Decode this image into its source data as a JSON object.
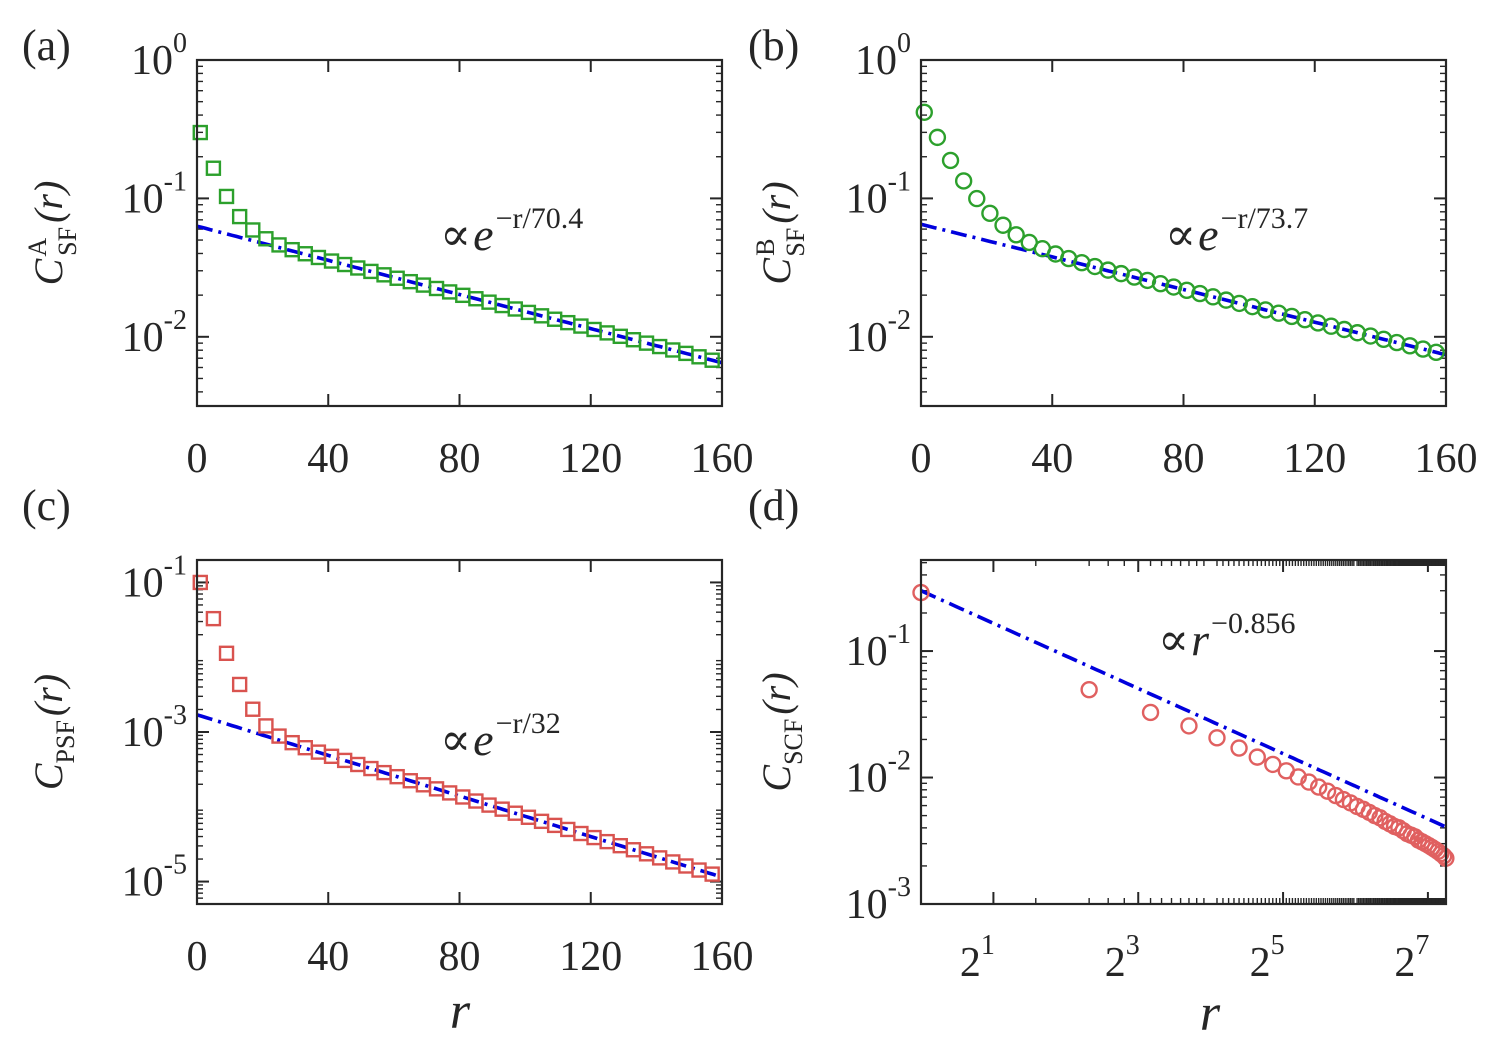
{
  "chart_data": [
    {
      "panel": "(a)",
      "type": "scatter",
      "xscale": "linear",
      "yscale": "log",
      "xlim": [
        0,
        160
      ],
      "ylim_exp": [
        -2.5,
        0
      ],
      "xticks": [
        0,
        40,
        80,
        120,
        160
      ],
      "xtick_labels": [
        "0",
        "40",
        "80",
        "120",
        "160"
      ],
      "yticks_exp": [
        0,
        -1,
        -2
      ],
      "ytick_labels": [
        {
          "base": "10",
          "exp": "0"
        },
        {
          "base": "10",
          "exp": "-1"
        },
        {
          "base": "10",
          "exp": "-2"
        }
      ],
      "ylabel": {
        "main": "C",
        "sup": "A",
        "sub": "SF",
        "arg": "(r)"
      },
      "xlabel": "",
      "marker": "square",
      "marker_color": "#2ca02c",
      "series_decay": {
        "r0": 1,
        "y0": 0.3,
        "yinf": 0.063,
        "rc": 5,
        "len": 70.4,
        "step": 4
      },
      "fit": {
        "form": "exp",
        "r_from": 0,
        "r_to": 160,
        "A": 0.063,
        "len": 70.4,
        "color": "#0000dd"
      },
      "annotation": {
        "lead": "∝",
        "base": "e",
        "sup": "−r/70.4"
      }
    },
    {
      "panel": "(b)",
      "type": "scatter",
      "xscale": "linear",
      "yscale": "log",
      "xlim": [
        0,
        160
      ],
      "ylim_exp": [
        -2.5,
        0
      ],
      "xticks": [
        0,
        40,
        80,
        120,
        160
      ],
      "xtick_labels": [
        "0",
        "40",
        "80",
        "120",
        "160"
      ],
      "yticks_exp": [
        0,
        -1,
        -2
      ],
      "ytick_labels": [
        {
          "base": "10",
          "exp": "0"
        },
        {
          "base": "10",
          "exp": "-1"
        },
        {
          "base": "10",
          "exp": "-2"
        }
      ],
      "ylabel": {
        "main": "C",
        "sup": "B",
        "sub": "SF",
        "arg": "(r)"
      },
      "xlabel": "",
      "marker": "circle",
      "marker_color": "#2ca02c",
      "series_decay": {
        "r0": 1,
        "y0": 0.42,
        "yinf": 0.065,
        "rc": 8,
        "len": 73.7,
        "step": 4
      },
      "fit": {
        "form": "exp",
        "r_from": 0,
        "r_to": 160,
        "A": 0.065,
        "len": 73.7,
        "color": "#0000dd"
      },
      "annotation": {
        "lead": "∝",
        "base": "e",
        "sup": "−r/73.7"
      }
    },
    {
      "panel": "(c)",
      "type": "scatter",
      "xscale": "linear",
      "yscale": "log",
      "xlim": [
        0,
        160
      ],
      "ylim_exp": [
        -5.3,
        -0.7
      ],
      "xticks": [
        0,
        40,
        80,
        120,
        160
      ],
      "xtick_labels": [
        "0",
        "40",
        "80",
        "120",
        "160"
      ],
      "yticks_exp": [
        -1,
        -3,
        -5
      ],
      "ytick_labels": [
        {
          "base": "10",
          "exp": "-1"
        },
        {
          "base": "10",
          "exp": "-3"
        },
        {
          "base": "10",
          "exp": "-5"
        }
      ],
      "ylabel": {
        "main": "C",
        "sup": "",
        "sub": "PSF",
        "arg": "(r)"
      },
      "xlabel": "r",
      "marker": "square",
      "marker_color": "#d9534f",
      "series_decay": {
        "r0": 1,
        "y0": 0.1,
        "yinf": 0.0017,
        "rc": 3.5,
        "len": 32,
        "step": 4
      },
      "fit": {
        "form": "exp",
        "r_from": 0,
        "r_to": 160,
        "A": 0.0017,
        "len": 32,
        "color": "#0000dd"
      },
      "annotation": {
        "lead": "∝",
        "base": "e",
        "sup": "−r/32"
      }
    },
    {
      "panel": "(d)",
      "type": "scatter",
      "xscale": "log2",
      "yscale": "log",
      "xlim_log2": [
        0,
        7.25
      ],
      "ylim_exp": [
        -3,
        -0.28
      ],
      "xticks_log2": [
        1,
        3,
        5,
        7
      ],
      "xtick_labels": [
        {
          "base": "2",
          "exp": "1"
        },
        {
          "base": "2",
          "exp": "3"
        },
        {
          "base": "2",
          "exp": "5"
        },
        {
          "base": "2",
          "exp": "7"
        }
      ],
      "yticks_exp": [
        -1,
        -2,
        -3
      ],
      "ytick_labels": [
        {
          "base": "10",
          "exp": "-1"
        },
        {
          "base": "10",
          "exp": "-2"
        },
        {
          "base": "10",
          "exp": "-3"
        }
      ],
      "ylabel": {
        "main": "C",
        "sup": "",
        "sub": "SCF",
        "arg": "(r)"
      },
      "xlabel": "r",
      "marker": "circle",
      "marker_color": "#e06060",
      "points": [
        [
          1,
          0.29
        ],
        [
          5,
          0.0495
        ],
        [
          9,
          0.0327
        ],
        [
          13,
          0.0256
        ],
        [
          17,
          0.0206
        ],
        [
          21,
          0.0171
        ],
        [
          25,
          0.0145
        ],
        [
          29,
          0.0127
        ],
        [
          33,
          0.0113
        ],
        [
          37,
          0.0101
        ],
        [
          41,
          0.0092
        ],
        [
          45,
          0.0084
        ],
        [
          49,
          0.0078
        ],
        [
          53,
          0.0072
        ],
        [
          57,
          0.0067
        ],
        [
          61,
          0.0063
        ],
        [
          65,
          0.0059
        ],
        [
          69,
          0.0056
        ],
        [
          73,
          0.0053
        ],
        [
          77,
          0.005
        ],
        [
          81,
          0.0048
        ],
        [
          85,
          0.0045
        ],
        [
          89,
          0.0043
        ],
        [
          93,
          0.0041
        ],
        [
          97,
          0.004
        ],
        [
          101,
          0.0038
        ],
        [
          105,
          0.0036
        ],
        [
          109,
          0.0035
        ],
        [
          113,
          0.0034
        ],
        [
          117,
          0.0032
        ],
        [
          121,
          0.0031
        ],
        [
          125,
          0.003
        ],
        [
          129,
          0.0029
        ],
        [
          133,
          0.0028
        ],
        [
          137,
          0.0027
        ],
        [
          141,
          0.0026
        ],
        [
          145,
          0.0025
        ],
        [
          149,
          0.0024
        ],
        [
          152,
          0.0023
        ]
      ],
      "fit": {
        "form": "power",
        "r_from": 1,
        "r_to": 153,
        "A": 0.3,
        "exp": -0.856,
        "color": "#0000dd"
      },
      "annotation": {
        "lead": "∝",
        "base": "r",
        "sup": "−0.856"
      }
    }
  ]
}
